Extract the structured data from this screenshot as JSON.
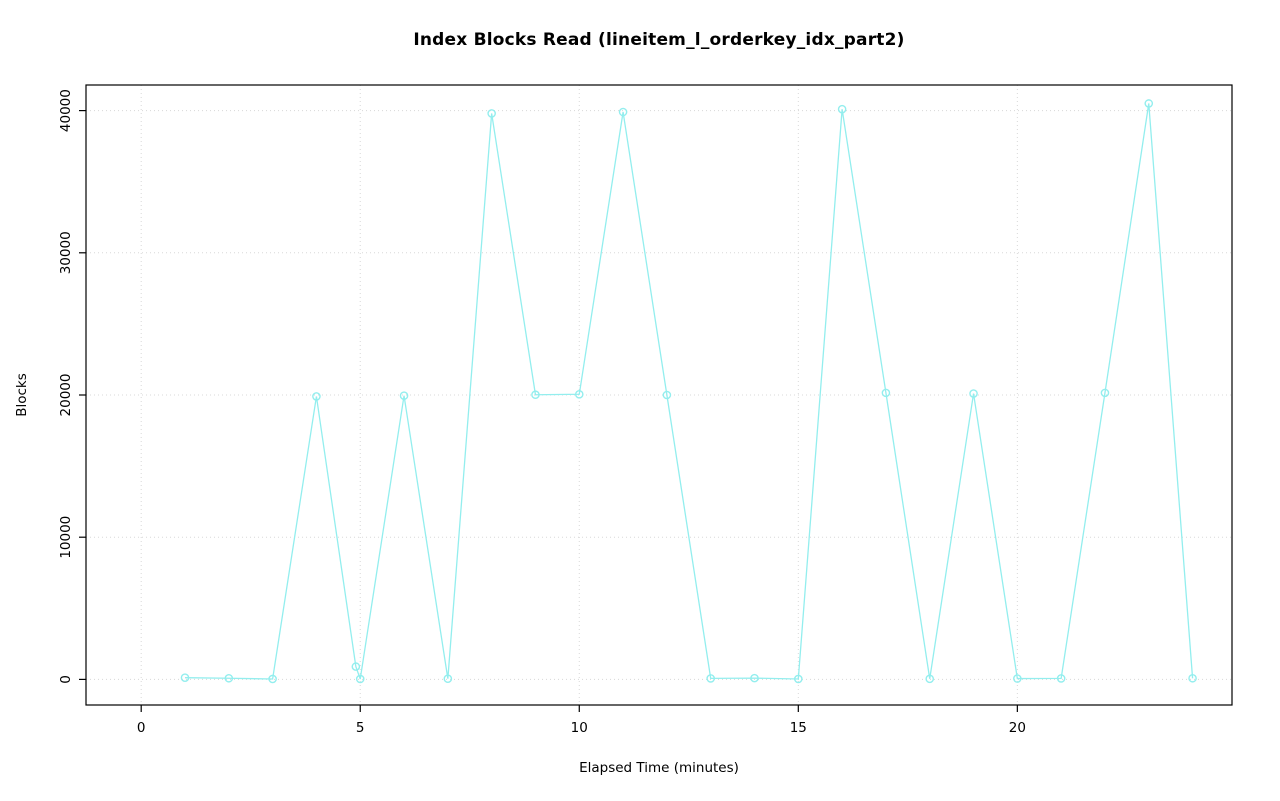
{
  "chart_data": {
    "type": "line",
    "title": "Index Blocks Read (lineitem_l_orderkey_idx_part2)",
    "xlabel": "Elapsed Time (minutes)",
    "ylabel": "Blocks",
    "x": [
      1,
      2,
      3,
      4,
      4.9,
      5,
      6,
      7,
      8,
      9,
      10,
      11,
      12,
      13,
      14,
      15,
      16,
      17,
      18,
      19,
      20,
      21,
      22,
      23,
      24
    ],
    "y": [
      120,
      80,
      30,
      19900,
      900,
      30,
      19950,
      50,
      39800,
      20020,
      20050,
      39900,
      20000,
      70,
      90,
      30,
      40100,
      20150,
      40,
      20100,
      60,
      70,
      20150,
      40500,
      80
    ],
    "x_ticks": [
      0,
      5,
      10,
      15,
      20
    ],
    "y_ticks": [
      0,
      10000,
      20000,
      30000,
      40000
    ],
    "xlim": [
      0,
      24
    ],
    "ylim": [
      0,
      40000
    ],
    "grid": true,
    "legend": "none",
    "marker": "open-circle",
    "line_color": "#93EEEE",
    "grid_color": "#D8D8D8",
    "axis_color": "#000000"
  }
}
